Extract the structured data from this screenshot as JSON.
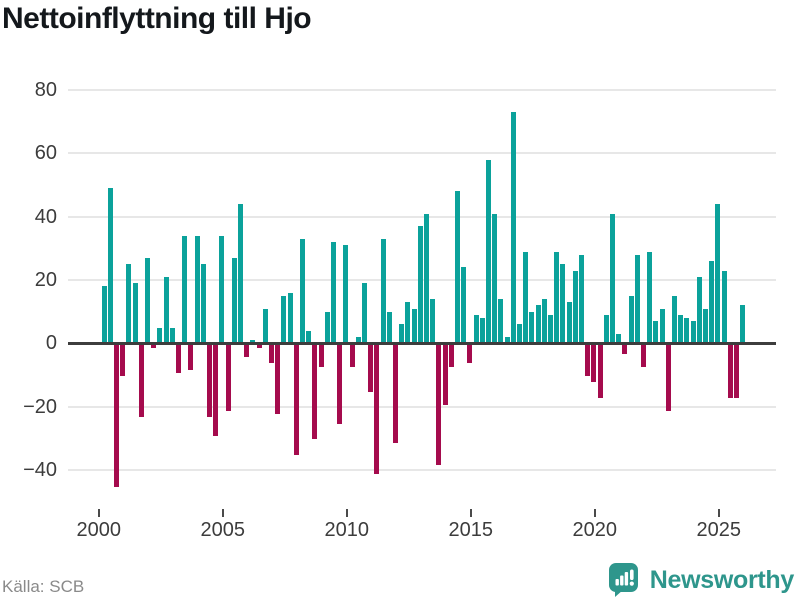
{
  "source_label": "Källa: SCB",
  "branding": {
    "logo_text": "Newsworthy",
    "logo_icon": "newsworthy-speech-bubble-bar-chart-icon"
  },
  "colors": {
    "positive_bar": "#0ba29b",
    "negative_bar": "#a50b4d",
    "brand_teal": "#2e968c",
    "zero_line": "#3d3d3d",
    "gridline": "#e7e7e7",
    "axis_text": "#3c3c3c",
    "title_text": "#14181c",
    "source_text": "#8a8a8a"
  },
  "chart_data": {
    "type": "bar",
    "title": "Nettoinflyttning till Hjo",
    "frequency": "quarterly",
    "start_period": "2000-Q1",
    "end_period": "2025-Q4",
    "values": [
      18,
      49,
      -45,
      -10,
      25,
      19,
      -23,
      27,
      -1,
      5,
      21,
      5,
      -9,
      34,
      -8,
      34,
      25,
      -23,
      -29,
      34,
      -21,
      27,
      44,
      -4,
      1,
      -1,
      11,
      -6,
      -22,
      15,
      16,
      -35,
      33,
      4,
      -30,
      -7,
      10,
      32,
      -25,
      31,
      -7,
      2,
      19,
      -15,
      -41,
      33,
      10,
      -31,
      6,
      13,
      11,
      37,
      41,
      14,
      -38,
      -19,
      -7,
      48,
      24,
      -6,
      9,
      8,
      58,
      41,
      14,
      2,
      73,
      6,
      29,
      10,
      12,
      14,
      9,
      29,
      25,
      13,
      23,
      28,
      -10,
      -12,
      -17,
      9,
      41,
      3,
      -3,
      15,
      28,
      -7,
      29,
      7,
      11,
      -21,
      15,
      9,
      8,
      7,
      21,
      11,
      26,
      44,
      23,
      -17,
      -17,
      12
    ],
    "x_tick_labels": [
      "2000",
      "2005",
      "2010",
      "2015",
      "2020",
      "2025"
    ],
    "x_tick_years": [
      2000,
      2005,
      2010,
      2015,
      2020,
      2025
    ],
    "y_tick_values": [
      80,
      60,
      40,
      20,
      0,
      -20,
      -40
    ],
    "ylim": [
      -50,
      85
    ],
    "xlabel": "",
    "ylabel": "",
    "grid": "horizontal",
    "legend": "none",
    "positive_color": "#0ba29b",
    "negative_color": "#a50b4d"
  }
}
